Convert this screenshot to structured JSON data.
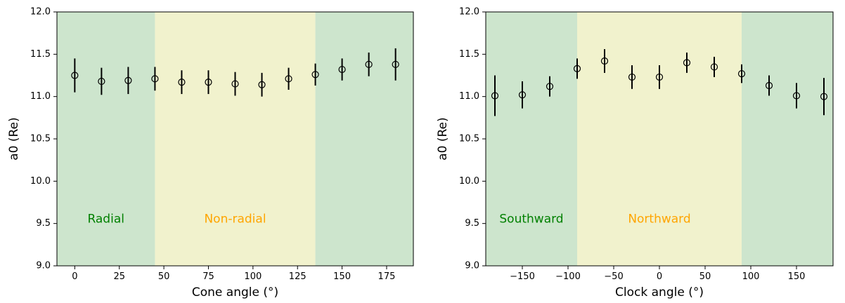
{
  "chart_data": [
    {
      "type": "scatter",
      "title": "",
      "xlabel": "Cone angle (°)",
      "ylabel": "a0 (Re)",
      "xlim": [
        -10,
        190
      ],
      "ylim": [
        9.0,
        12.0
      ],
      "xticks": [
        0,
        25,
        50,
        75,
        100,
        125,
        150,
        175
      ],
      "xtick_labels": [
        "0",
        "25",
        "50",
        "75",
        "100",
        "125",
        "150",
        "175"
      ],
      "yticks": [
        9.0,
        9.5,
        10.0,
        10.5,
        11.0,
        11.5,
        12.0
      ],
      "ytick_labels": [
        "9.0",
        "9.5",
        "10.0",
        "10.5",
        "11.0",
        "11.5",
        "12.0"
      ],
      "grid": false,
      "legend": "none",
      "regions": [
        {
          "x0": -10,
          "x1": 45,
          "color": "#cde5cd",
          "label": "Radial",
          "label_color": "#008000"
        },
        {
          "x0": 45,
          "x1": 135,
          "color": "#f1f2cd",
          "label": "Non-radial",
          "label_color": "#ffa500"
        },
        {
          "x0": 135,
          "x1": 190,
          "color": "#cde5cd",
          "label": "",
          "label_color": "#008000"
        }
      ],
      "region_label_y": 9.55,
      "x": [
        0,
        15,
        30,
        45,
        60,
        75,
        90,
        105,
        120,
        135,
        150,
        165,
        180
      ],
      "y": [
        11.25,
        11.18,
        11.19,
        11.21,
        11.17,
        11.17,
        11.15,
        11.14,
        11.21,
        11.26,
        11.32,
        11.38,
        11.38
      ],
      "yerr": [
        0.2,
        0.16,
        0.16,
        0.14,
        0.14,
        0.14,
        0.14,
        0.14,
        0.13,
        0.13,
        0.13,
        0.14,
        0.19
      ]
    },
    {
      "type": "scatter",
      "title": "",
      "xlabel": "Clock angle (°)",
      "ylabel": "a0 (Re)",
      "xlim": [
        -190,
        190
      ],
      "ylim": [
        9.0,
        12.0
      ],
      "xticks": [
        -150,
        -100,
        -50,
        0,
        50,
        100,
        150
      ],
      "xtick_labels": [
        "−150",
        "−100",
        "−50",
        "0",
        "50",
        "100",
        "150"
      ],
      "yticks": [
        9.0,
        9.5,
        10.0,
        10.5,
        11.0,
        11.5,
        12.0
      ],
      "ytick_labels": [
        "9.0",
        "9.5",
        "10.0",
        "10.5",
        "11.0",
        "11.5",
        "12.0"
      ],
      "grid": false,
      "legend": "none",
      "regions": [
        {
          "x0": -190,
          "x1": -90,
          "color": "#cde5cd",
          "label": "Southward",
          "label_color": "#008000"
        },
        {
          "x0": -90,
          "x1": 90,
          "color": "#f1f2cd",
          "label": "Northward",
          "label_color": "#ffa500"
        },
        {
          "x0": 90,
          "x1": 190,
          "color": "#cde5cd",
          "label": "",
          "label_color": "#008000"
        }
      ],
      "region_label_y": 9.55,
      "x": [
        -180,
        -150,
        -120,
        -90,
        -60,
        -30,
        0,
        30,
        60,
        90,
        120,
        150,
        180
      ],
      "y": [
        11.01,
        11.02,
        11.12,
        11.33,
        11.42,
        11.23,
        11.23,
        11.4,
        11.35,
        11.27,
        11.13,
        11.01,
        11.0
      ],
      "yerr": [
        0.24,
        0.16,
        0.12,
        0.12,
        0.14,
        0.14,
        0.14,
        0.12,
        0.12,
        0.11,
        0.12,
        0.15,
        0.22
      ]
    }
  ]
}
